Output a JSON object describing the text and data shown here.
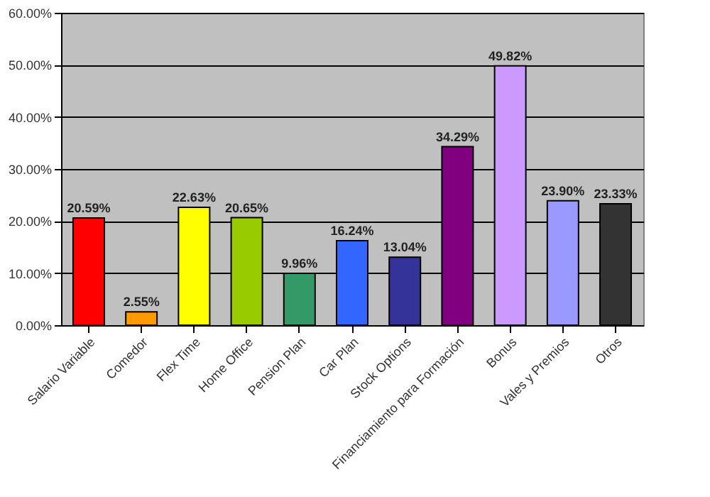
{
  "chart_data": {
    "type": "bar",
    "categories": [
      "Salario Variable",
      "Comedor",
      "Flex Time",
      "Home Office",
      "Pension Plan",
      "Car Plan",
      "Stock Options",
      "Financiamiento para Formación",
      "Bonus",
      "Vales y Premios",
      "Otros"
    ],
    "values": [
      20.59,
      2.55,
      22.63,
      20.65,
      9.96,
      16.24,
      13.04,
      34.29,
      49.82,
      23.9,
      23.33
    ],
    "value_labels": [
      "20.59%",
      "2.55%",
      "22.63%",
      "20.65%",
      "9.96%",
      "16.24%",
      "13.04%",
      "34.29%",
      "49.82%",
      "23.90%",
      "23.33%"
    ],
    "colors": [
      "#ff0000",
      "#ff9900",
      "#ffff00",
      "#99cc00",
      "#339966",
      "#3366ff",
      "#333399",
      "#800080",
      "#cc99ff",
      "#9999ff",
      "#333333"
    ],
    "ylim": [
      0,
      60
    ],
    "yticks": [
      {
        "value": 0,
        "label": "0.00%"
      },
      {
        "value": 10,
        "label": "10.00%"
      },
      {
        "value": 20,
        "label": "20.00%"
      },
      {
        "value": 30,
        "label": "30.00%"
      },
      {
        "value": 40,
        "label": "40.00%"
      },
      {
        "value": 50,
        "label": "50.00%"
      },
      {
        "value": 60,
        "label": "60.00%"
      }
    ],
    "grid": "y"
  }
}
